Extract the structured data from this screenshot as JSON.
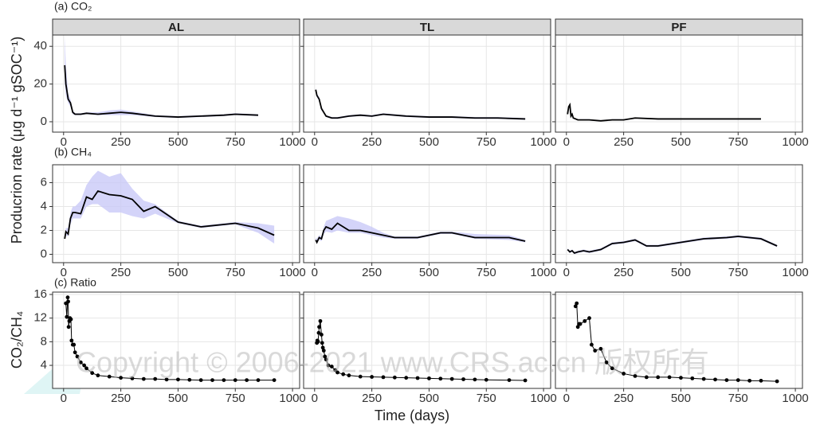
{
  "chart_data": {
    "type": "line",
    "x_title": "Time (days)",
    "facets": [
      "AL",
      "TL",
      "PF"
    ],
    "xlim": [
      -48,
      1031
    ],
    "xticks": [
      0,
      250,
      500,
      750,
      1000
    ],
    "grid": true,
    "line_color": "#000000",
    "ribbon_color": "#c9c9f7",
    "watermark": "Copyright © 2006-2021 www.CRS.ac.cn 版权所有",
    "rows": [
      {
        "label": "(a) CO₂",
        "y_title": "Producrion rate (μg d⁻¹ gSOC⁻¹)",
        "ylim": [
          -5.5,
          46
        ],
        "yticks": [
          0,
          20,
          40
        ],
        "markers": false,
        "panels": [
          {
            "x": [
              5,
              10,
              20,
              30,
              40,
              50,
              75,
              100,
              150,
              200,
              250,
              300,
              400,
              500,
              600,
              700,
              750,
              850
            ],
            "values": [
              30,
              20,
              12,
              10,
              5,
              4,
              4,
              4.5,
              4,
              4.5,
              5,
              4.5,
              3,
              2.5,
              3,
              3.5,
              4,
              3.5
            ],
            "lower": [
              20,
              14,
              10,
              8,
              4,
              3.5,
              3.5,
              4,
              3.5,
              3.5,
              3.5,
              3.5,
              2.5,
              2,
              2.5,
              3,
              3.5,
              3
            ],
            "upper": [
              45,
              30,
              15,
              12,
              6,
              4.5,
              4.5,
              5,
              5,
              6,
              6.5,
              5.5,
              3.5,
              3,
              3.5,
              4,
              4.5,
              4
            ]
          },
          {
            "x": [
              5,
              10,
              20,
              30,
              40,
              50,
              75,
              100,
              150,
              200,
              250,
              300,
              400,
              500,
              600,
              700,
              800,
              920
            ],
            "values": [
              17,
              14,
              12,
              7,
              5,
              3,
              2,
              2,
              3,
              3.5,
              3,
              4,
              3,
              2.5,
              2.5,
              2,
              2,
              1.5
            ],
            "lower": [
              16,
              13,
              11,
              6,
              4.5,
              2.5,
              1.5,
              1.5,
              2.5,
              3,
              2.5,
              3.5,
              2.5,
              2,
              2,
              1.5,
              1.5,
              1
            ],
            "upper": [
              18,
              15,
              13,
              8,
              5.5,
              3.5,
              2.5,
              2.5,
              3.5,
              4,
              3.5,
              4.5,
              3.5,
              3,
              3,
              2.5,
              2.5,
              2
            ]
          },
          {
            "x": [
              5,
              10,
              15,
              20,
              25,
              30,
              50,
              100,
              150,
              200,
              250,
              300,
              400,
              500,
              600,
              700,
              850
            ],
            "values": [
              4,
              8,
              9,
              3,
              4,
              2,
              1,
              1,
              0.5,
              1,
              1,
              2,
              1.5,
              1.5,
              1.5,
              1.5,
              1.5
            ],
            "lower": [
              3.7,
              7.7,
              8.7,
              2.7,
              3.7,
              1.7,
              0.7,
              0.7,
              0.2,
              0.7,
              0.7,
              1.7,
              1.2,
              1.2,
              1.2,
              1.2,
              1.2
            ],
            "upper": [
              4.3,
              8.3,
              9.3,
              3.3,
              4.3,
              2.3,
              1.3,
              1.3,
              0.8,
              1.3,
              1.3,
              2.3,
              1.8,
              1.8,
              1.8,
              1.8,
              1.8
            ]
          }
        ]
      },
      {
        "label": "(b) CH₄",
        "ylim": [
          -0.7,
          7.5
        ],
        "yticks": [
          0,
          2,
          4,
          6
        ],
        "markers": false,
        "panels": [
          {
            "x": [
              5,
              10,
              20,
              30,
              40,
              50,
              75,
              100,
              125,
              150,
              200,
              250,
              300,
              350,
              400,
              500,
              600,
              750,
              850,
              920
            ],
            "values": [
              1.3,
              1.9,
              1.7,
              3,
              3.5,
              3.5,
              3.4,
              4.8,
              4.6,
              5.3,
              5,
              4.9,
              4.6,
              3.6,
              4,
              2.7,
              2.3,
              2.6,
              2.2,
              1.6
            ],
            "lower": [
              1.2,
              1.6,
              1.5,
              2.5,
              3,
              3,
              3,
              4,
              4.2,
              4.2,
              3.5,
              3.5,
              3.2,
              3,
              3.4,
              2.6,
              2.2,
              2.5,
              1.8,
              0.9
            ],
            "upper": [
              1.5,
              2.2,
              2.2,
              3.5,
              4,
              4,
              4.5,
              5.8,
              6.5,
              7,
              6.5,
              6.8,
              5.5,
              4.5,
              4.2,
              2.8,
              2.4,
              2.7,
              2.6,
              2.4
            ]
          },
          {
            "x": [
              5,
              10,
              20,
              30,
              40,
              50,
              75,
              100,
              150,
              200,
              250,
              300,
              350,
              450,
              500,
              550,
              600,
              700,
              850,
              920
            ],
            "values": [
              1.2,
              1,
              1.4,
              1.3,
              2,
              2.3,
              2.1,
              2.6,
              2,
              2,
              1.8,
              1.6,
              1.4,
              1.4,
              1.6,
              1.8,
              1.8,
              1.4,
              1.4,
              1.1
            ],
            "lower": [
              1.1,
              0.9,
              1.2,
              1.1,
              1.7,
              1.9,
              1.8,
              2,
              1.8,
              1.8,
              1.6,
              1.4,
              1.3,
              1.3,
              1.5,
              1.7,
              1.7,
              1.3,
              1.2,
              1
            ],
            "upper": [
              1.4,
              1.3,
              1.6,
              1.5,
              2.3,
              2.8,
              3,
              3.2,
              3,
              2.7,
              2.3,
              1.8,
              1.5,
              1.5,
              1.7,
              1.9,
              1.9,
              1.7,
              1.6,
              1.2
            ]
          },
          {
            "x": [
              5,
              15,
              25,
              35,
              50,
              75,
              100,
              150,
              200,
              250,
              300,
              350,
              400,
              500,
              600,
              700,
              750,
              850,
              920
            ],
            "values": [
              0.4,
              0.2,
              0.3,
              0.1,
              0.2,
              0.3,
              0.2,
              0.4,
              0.9,
              1,
              1.2,
              0.7,
              0.7,
              1,
              1.3,
              1.4,
              1.5,
              1.3,
              0.7
            ],
            "lower": [
              0.3,
              0.1,
              0.2,
              0,
              0.1,
              0.2,
              0.1,
              0.3,
              0.8,
              0.9,
              1.1,
              0.6,
              0.6,
              0.9,
              1.2,
              1.3,
              1.4,
              1.2,
              0.6
            ],
            "upper": [
              0.5,
              0.3,
              0.4,
              0.2,
              0.3,
              0.4,
              0.3,
              0.5,
              1,
              1.1,
              1.3,
              0.8,
              0.8,
              1.1,
              1.4,
              1.5,
              1.6,
              1.4,
              0.8
            ]
          }
        ]
      },
      {
        "label": "(c) Ratio",
        "y_title": "CO₂/CH₄",
        "ylim": [
          0.1,
          16.4
        ],
        "yticks": [
          4,
          8,
          12,
          16
        ],
        "markers": true,
        "panels": [
          {
            "x": [
              10,
              14,
              18,
              20,
              22,
              25,
              28,
              32,
              35,
              40,
              45,
              50,
              60,
              75,
              90,
              100,
              125,
              150,
              200,
              250,
              300,
              350,
              400,
              450,
              500,
              550,
              600,
              650,
              700,
              750,
              800,
              850,
              920
            ],
            "values": [
              14.5,
              12.2,
              15.5,
              14.8,
              10.5,
              11.5,
              12,
              11.8,
              8.2,
              7.5,
              7.5,
              6.2,
              5.5,
              4.5,
              4,
              3.5,
              2.7,
              2.3,
              2.1,
              1.9,
              1.8,
              1.7,
              1.7,
              1.6,
              1.6,
              1.55,
              1.5,
              1.5,
              1.5,
              1.5,
              1.5,
              1.5,
              1.5
            ]
          },
          {
            "x": [
              10,
              12,
              15,
              18,
              20,
              25,
              30,
              33,
              36,
              40,
              45,
              50,
              60,
              75,
              90,
              100,
              125,
              150,
              200,
              250,
              300,
              350,
              400,
              450,
              500,
              550,
              600,
              650,
              700,
              750,
              850,
              920
            ],
            "values": [
              7.8,
              8.2,
              8,
              9.5,
              10.5,
              11.5,
              9.2,
              7.8,
              7,
              6.5,
              5.5,
              5,
              4,
              3.8,
              3.2,
              2.8,
              2.5,
              2.3,
              2.1,
              2.05,
              2,
              1.95,
              1.9,
              1.85,
              1.8,
              1.75,
              1.7,
              1.65,
              1.6,
              1.55,
              1.5,
              1.45
            ]
          },
          {
            "x": [
              40,
              45,
              50,
              55,
              60,
              80,
              100,
              110,
              125,
              150,
              175,
              200,
              250,
              300,
              350,
              400,
              450,
              500,
              550,
              600,
              650,
              700,
              750,
              800,
              850,
              920
            ],
            "values": [
              14,
              14.5,
              10.5,
              11,
              11,
              11.5,
              12,
              7.5,
              6.5,
              6.8,
              4.5,
              3.5,
              2.6,
              2.2,
              2,
              2,
              2,
              1.9,
              1.8,
              1.7,
              1.6,
              1.5,
              1.5,
              1.4,
              1.4,
              1.3
            ]
          }
        ]
      }
    ]
  }
}
